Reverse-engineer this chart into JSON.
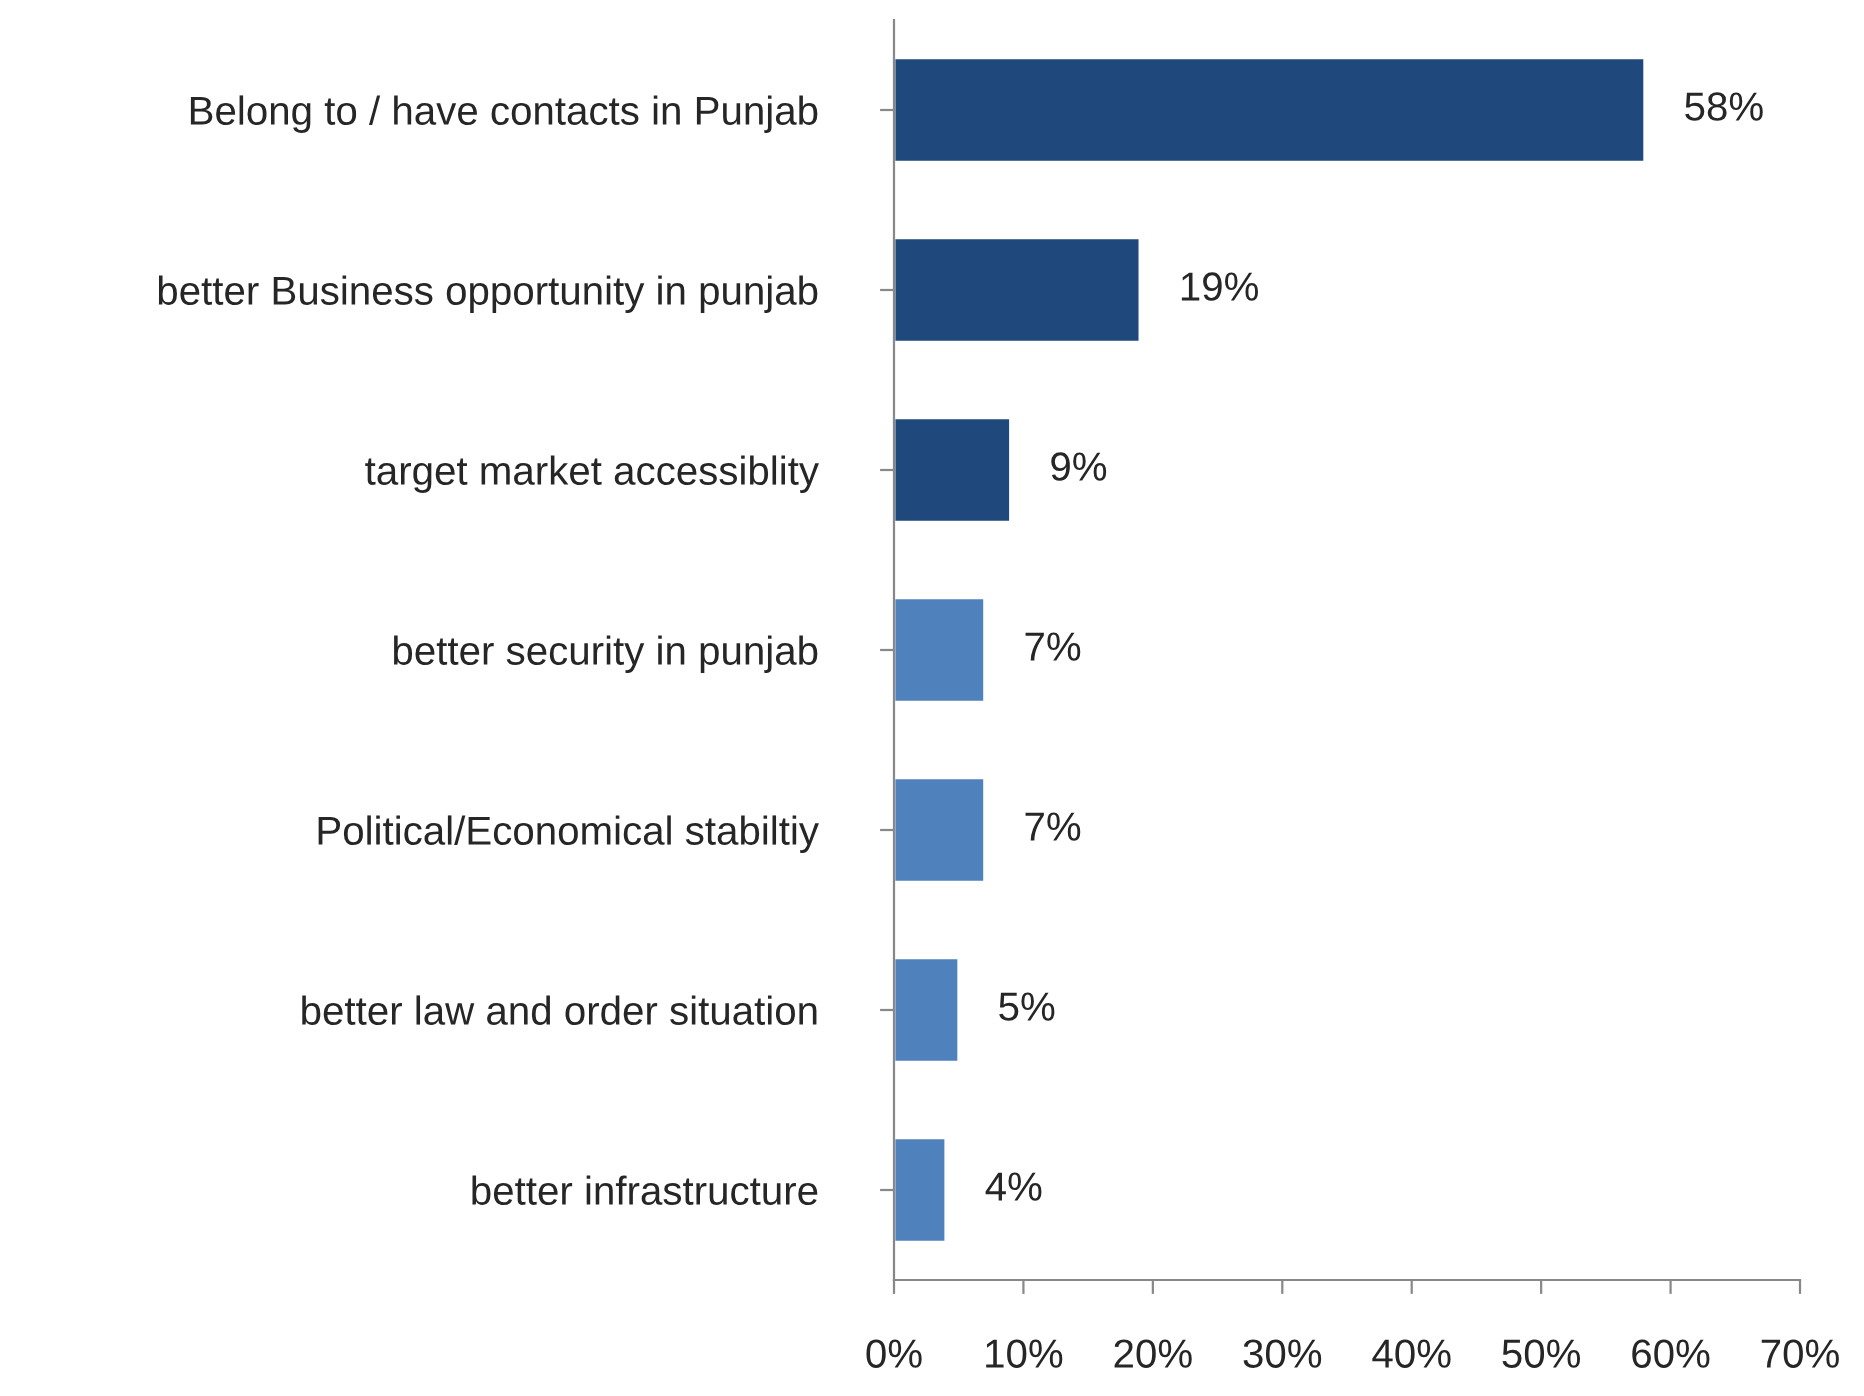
{
  "chart_data": {
    "type": "bar",
    "orientation": "horizontal",
    "categories": [
      "Belong to / have contacts in Punjab",
      "better Business opportunity in punjab",
      "target market accessiblity",
      "better security in punjab",
      "Political/Economical stabiltiy",
      "better law and order situation",
      "better infrastructure"
    ],
    "values": [
      58,
      19,
      9,
      7,
      7,
      5,
      4
    ],
    "colors": [
      "#1f497d",
      "#1f497d",
      "#1f497d",
      "#4f81bd",
      "#4f81bd",
      "#4f81bd",
      "#4f81bd"
    ],
    "value_labels": [
      "58%",
      "19%",
      "9%",
      "7%",
      "7%",
      "5%",
      "4%"
    ],
    "xlim": [
      0,
      70
    ],
    "xticks": [
      {
        "value": 0,
        "label": "0%"
      },
      {
        "value": 10,
        "label": "10%"
      },
      {
        "value": 20,
        "label": "20%"
      },
      {
        "value": 30,
        "label": "30%"
      },
      {
        "value": 40,
        "label": "40%"
      },
      {
        "value": 50,
        "label": "50%"
      },
      {
        "value": 60,
        "label": "60%"
      },
      {
        "value": 70,
        "label": "70%"
      }
    ],
    "grid": false,
    "legend": false
  }
}
